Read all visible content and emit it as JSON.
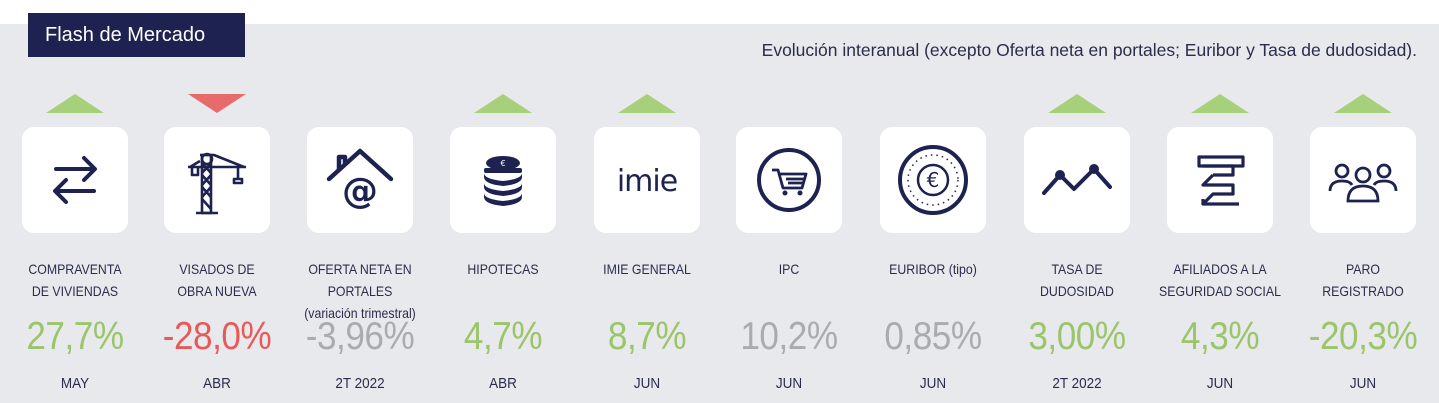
{
  "header": {
    "title": "Flash de Mercado",
    "subtitle": "Evolución interanual (excepto Oferta neta en portales; Euribor y Tasa de dudosidad)."
  },
  "colors": {
    "navy": "#1e2250",
    "green": "#9bc56a",
    "red": "#e85a5a",
    "gray": "#a9abb1",
    "arrow_up": "#a7d07a",
    "arrow_down": "#e86b6b"
  },
  "indicators": [
    {
      "icon": "exchange-arrows-icon",
      "trend": "up",
      "label_line1": "COMPRAVENTA",
      "label_line2": "DE VIVIENDAS",
      "value": "27,7%",
      "value_color": "green",
      "period": "MAY"
    },
    {
      "icon": "crane-icon",
      "trend": "down",
      "label_line1": "VISADOS DE",
      "label_line2": "OBRA NUEVA",
      "value": "-28,0%",
      "value_color": "red",
      "period": "ABR"
    },
    {
      "icon": "house-at-icon",
      "trend": "none",
      "label_line1": "OFERTA NETA EN PORTALES",
      "label_line2": "(variación trimestral)",
      "value": "-3,96%",
      "value_color": "gray",
      "period": "2T 2022"
    },
    {
      "icon": "coins-stack-icon",
      "trend": "up",
      "label_line1": "HIPOTECAS",
      "label_line2": "",
      "value": "4,7%",
      "value_color": "green",
      "period": "ABR"
    },
    {
      "icon": "imie-logo-icon",
      "trend": "up",
      "label_line1": "IMIE GENERAL",
      "label_line2": "",
      "value": "8,7%",
      "value_color": "green",
      "period": "JUN",
      "logo_text": "imie"
    },
    {
      "icon": "shopping-cart-icon",
      "trend": "none",
      "label_line1": "IPC",
      "label_line2": "",
      "value": "10,2%",
      "value_color": "gray",
      "period": "JUN"
    },
    {
      "icon": "euro-coin-icon",
      "trend": "none",
      "label_line1": "EURIBOR (tipo)",
      "label_line2": "",
      "value": "0,85%",
      "value_color": "gray",
      "period": "JUN"
    },
    {
      "icon": "trend-line-icon",
      "trend": "up",
      "label_line1": "TASA DE",
      "label_line2": "DUDOSIDAD",
      "value": "3,00%",
      "value_color": "green",
      "period": "2T 2022"
    },
    {
      "icon": "social-security-icon",
      "trend": "up",
      "label_line1": "AFILIADOS A LA",
      "label_line2": "SEGURIDAD SOCIAL",
      "value": "4,3%",
      "value_color": "green",
      "period": "JUN"
    },
    {
      "icon": "people-group-icon",
      "trend": "up",
      "label_line1": "PARO",
      "label_line2": "REGISTRADO",
      "value": "-20,3%",
      "value_color": "green",
      "period": "JUN"
    }
  ]
}
